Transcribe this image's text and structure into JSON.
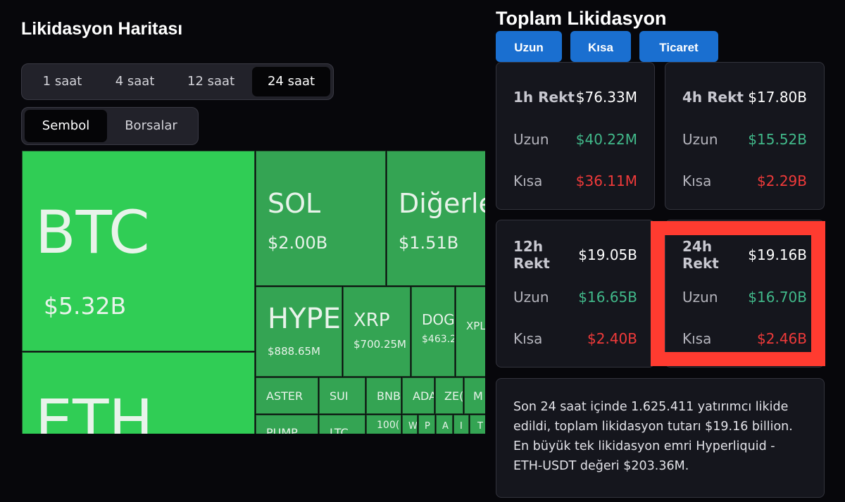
{
  "map_title": "Likidasyon Haritası",
  "total_title": "Toplam Likidasyon",
  "time_filters": [
    "1 saat",
    "4 saat",
    "12 saat",
    "24 saat"
  ],
  "active_time_filter": "24 saat",
  "view_filters": [
    "Sembol",
    "Borsalar"
  ],
  "active_view_filter": "Sembol",
  "treemap": [
    {
      "name": "BTC",
      "value": "$5.32B"
    },
    {
      "name": "ETH",
      "value": ""
    },
    {
      "name": "SOL",
      "value": "$2.00B"
    },
    {
      "name": "Diğerle",
      "value": "$1.51B"
    },
    {
      "name": "HYPE",
      "value": "$888.65M"
    },
    {
      "name": "XRP",
      "value": "$700.25M"
    },
    {
      "name": "DOG",
      "value": "$463.2"
    },
    {
      "name": "XPL",
      "value": ""
    },
    {
      "name": "ASTER",
      "value": ""
    },
    {
      "name": "SUI",
      "value": ""
    },
    {
      "name": "BNB",
      "value": ""
    },
    {
      "name": "ADA",
      "value": ""
    },
    {
      "name": "ZE(",
      "value": ""
    },
    {
      "name": "M",
      "value": ""
    },
    {
      "name": "PUMP",
      "value": ""
    },
    {
      "name": "LTC",
      "value": ""
    },
    {
      "name": "100(",
      "value": ""
    },
    {
      "name": "W",
      "value": ""
    },
    {
      "name": "P",
      "value": ""
    },
    {
      "name": "A",
      "value": ""
    },
    {
      "name": "I",
      "value": ""
    },
    {
      "name": "T",
      "value": ""
    }
  ],
  "tabs": [
    "Uzun",
    "Kısa",
    "Ticaret"
  ],
  "cards": [
    {
      "head_label": "1h Rekt",
      "head_value": "$76.33M",
      "long_label": "Uzun",
      "long_value": "$40.22M",
      "short_label": "Kısa",
      "short_value": "$36.11M"
    },
    {
      "head_label": "4h Rekt",
      "head_value": "$17.80B",
      "long_label": "Uzun",
      "long_value": "$15.52B",
      "short_label": "Kısa",
      "short_value": "$2.29B"
    },
    {
      "head_label": "12h Rekt",
      "head_value": "$19.05B",
      "long_label": "Uzun",
      "long_value": "$16.65B",
      "short_label": "Kısa",
      "short_value": "$2.40B"
    },
    {
      "head_label": "24h Rekt",
      "head_value": "$19.16B",
      "long_label": "Uzun",
      "long_value": "$16.70B",
      "short_label": "Kısa",
      "short_value": "$2.46B"
    }
  ],
  "summary_text": "Son 24 saat içinde 1.625.411 yatırımcı likide edildi, toplam likidasyon tutarı $19.16 billion. En büyük tek likidasyon emri Hyperliquid - ETH-USDT değeri $203.36M.",
  "colors": {
    "long": "#41b98a",
    "short": "#f03a3a",
    "accent": "#1a6fd0",
    "tile_bright": "#30cd55",
    "tile_mid": "#34a453",
    "highlight": "#ff3b30"
  }
}
